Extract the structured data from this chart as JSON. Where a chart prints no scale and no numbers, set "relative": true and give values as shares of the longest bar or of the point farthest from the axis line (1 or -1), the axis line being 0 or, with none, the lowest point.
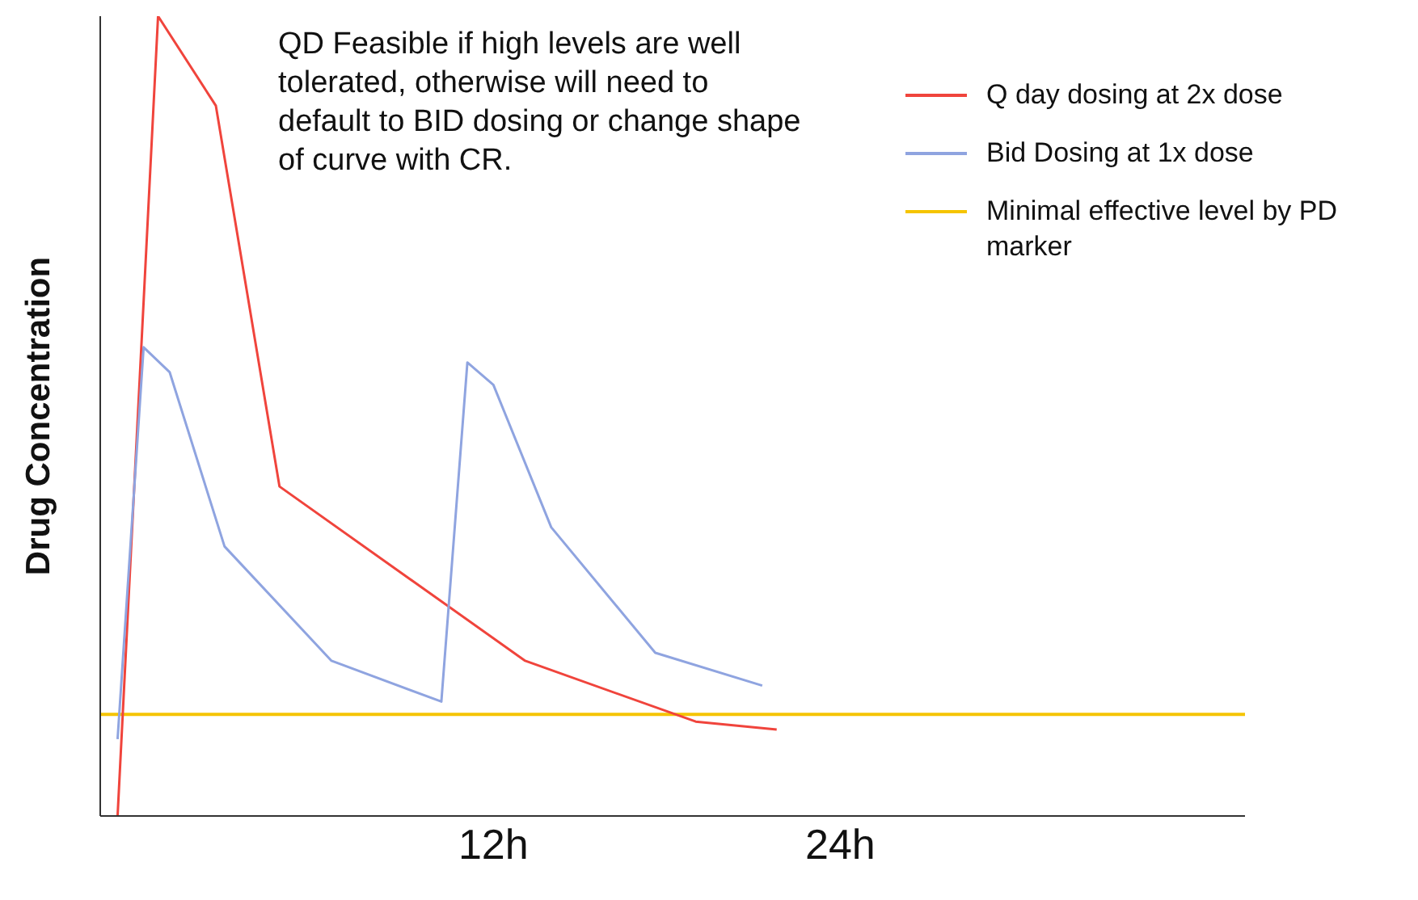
{
  "chart_data": {
    "type": "line",
    "relative": true,
    "ylabel": "Drug Concentration",
    "annotations": [
      "QD Feasible if high levels are well tolerated, otherwise will need to default to BID dosing or change shape of curve with CR."
    ],
    "xlim": [
      -1.6,
      38
    ],
    "xticks": [
      {
        "value": 12,
        "label": "12h"
      },
      {
        "value": 24,
        "label": "24h"
      }
    ],
    "series": [
      {
        "name": "Q day dosing at 2x dose",
        "color": "#f0443c",
        "x": [
          -1.0,
          0.4,
          2.4,
          4.6,
          13.1,
          19.0,
          21.8
        ],
        "values": [
          0,
          1,
          0.888,
          0.412,
          0.194,
          0.118,
          0.108
        ]
      },
      {
        "name": "Bid Dosing at 1x dose",
        "color": "#8fa4e0",
        "x": [
          -1.0,
          -0.1,
          0.8,
          2.7,
          6.4,
          10.2,
          11.1,
          12.0,
          14.0,
          17.6,
          21.3
        ],
        "values": [
          0.096,
          0.586,
          0.555,
          0.337,
          0.194,
          0.143,
          0.567,
          0.539,
          0.361,
          0.204,
          0.163
        ]
      }
    ],
    "ref_lines": [
      {
        "axis": "y",
        "value": 0.127,
        "label": "Minimal effective level by PD marker",
        "color": "#f5c400"
      }
    ],
    "legend": "top right",
    "grid": false,
    "marker": "none",
    "line_style": "solid"
  }
}
